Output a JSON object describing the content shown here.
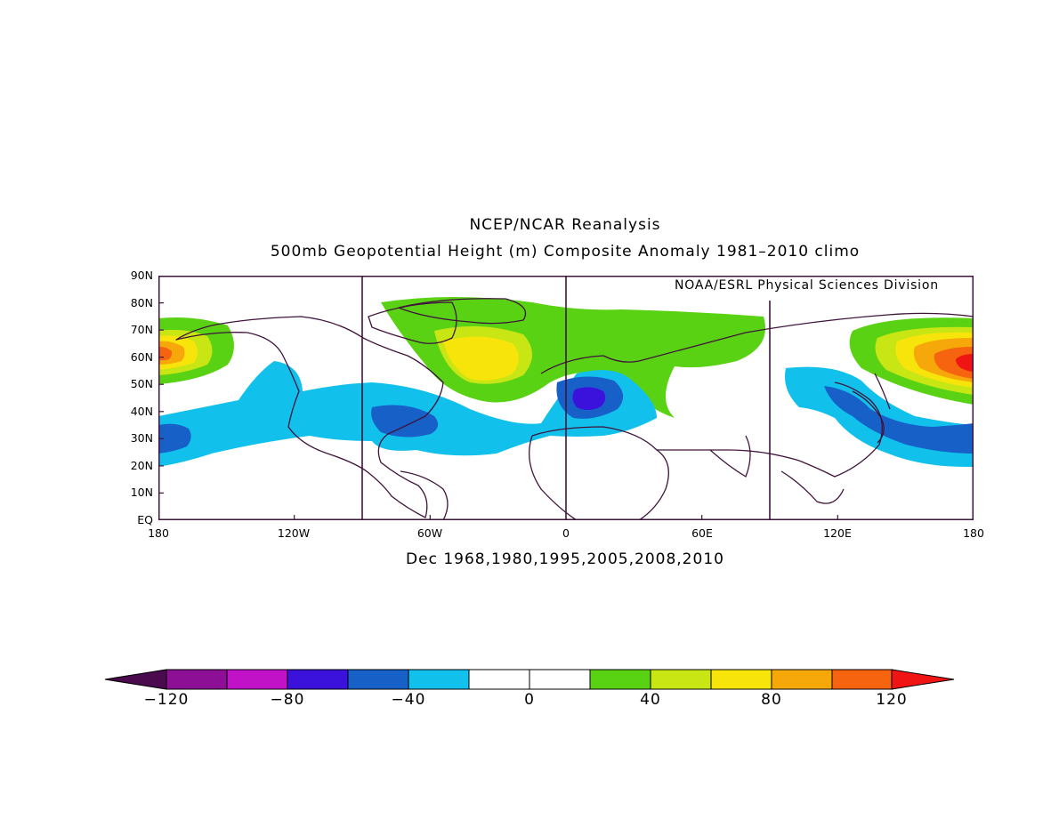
{
  "header": {
    "title": "NCEP/NCAR Reanalysis",
    "subtitle": "500mb Geopotential Height (m) Composite Anomaly 1981–2010 climo",
    "credit": "NOAA/ESRL Physical Sciences Division"
  },
  "caption": "Dec 1968,1980,1995,2005,2008,2010",
  "axes": {
    "y_ticks": [
      "EQ",
      "10N",
      "20N",
      "30N",
      "40N",
      "50N",
      "60N",
      "70N",
      "80N",
      "90N"
    ],
    "x_ticks": [
      "180",
      "120W",
      "60W",
      "0",
      "60E",
      "120E",
      "180"
    ]
  },
  "colorbar": {
    "labels": [
      "−120",
      "−80",
      "−40",
      "0",
      "40",
      "80",
      "120"
    ],
    "colors": [
      "#4b0a4e",
      "#8c0f96",
      "#c112c8",
      "#3a12dc",
      "#1660c8",
      "#12c0ec",
      "#ffffff",
      "#ffffff",
      "#5ad214",
      "#c8e614",
      "#f6e40a",
      "#f6a80a",
      "#f66410",
      "#f01414"
    ]
  }
}
